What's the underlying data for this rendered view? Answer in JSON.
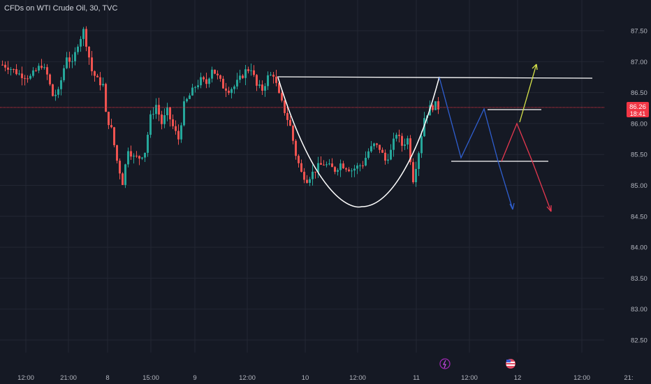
{
  "header": {
    "symbol_title": "CFDs on WTI Crude Oil, 30, TVC"
  },
  "price_axis": {
    "last_price": "86.26",
    "countdown": "18:41",
    "last_price_color": "#f23645",
    "labels": [
      "87.50",
      "87.00",
      "86.50",
      "86.00",
      "85.50",
      "85.00",
      "84.50",
      "84.00",
      "83.50",
      "83.00",
      "82.50"
    ]
  },
  "time_axis": {
    "labels": [
      "12:00",
      "21:00",
      "8",
      "15:00",
      "9",
      "12:00",
      "10",
      "12:00",
      "11",
      "12:00",
      "12",
      "12:00",
      "21:"
    ]
  },
  "event_icons": [
    {
      "name": "lightning-icon",
      "color": "#9c27b0"
    },
    {
      "name": "us-flag-icon",
      "color": "#e04b63"
    }
  ],
  "colors": {
    "background": "#151924",
    "grid": "#232733",
    "up": "#26a69a",
    "down": "#ef5350",
    "drawing_white": "#ffffff",
    "drawing_blue": "#2f5fd0",
    "drawing_red": "#e5384f",
    "drawing_yellow": "#d7e34a"
  },
  "chart_data": {
    "type": "candlestick",
    "title": "CFDs on WTI Crude Oil, 30, TVC",
    "ylim": [
      82.2,
      87.8
    ],
    "grid": true,
    "last_price": 86.26,
    "anchors": [
      [
        0,
        86.95
      ],
      [
        2,
        86.92
      ],
      [
        6,
        86.8
      ],
      [
        10,
        86.75
      ],
      [
        14,
        86.95
      ],
      [
        16,
        86.78
      ],
      [
        18,
        86.45
      ],
      [
        20,
        86.5
      ],
      [
        23,
        87.1
      ],
      [
        25,
        86.95
      ],
      [
        27,
        87.3
      ],
      [
        29,
        87.5
      ],
      [
        30,
        87.3
      ],
      [
        32,
        86.85
      ],
      [
        34,
        86.7
      ],
      [
        36,
        86.62
      ],
      [
        37,
        86.15
      ],
      [
        39,
        85.9
      ],
      [
        41,
        85.4
      ],
      [
        43,
        85.05
      ],
      [
        45,
        85.6
      ],
      [
        47,
        85.45
      ],
      [
        49,
        85.45
      ],
      [
        51,
        85.55
      ],
      [
        53,
        86.1
      ],
      [
        55,
        86.3
      ],
      [
        57,
        86.0
      ],
      [
        59,
        86.2
      ],
      [
        61,
        85.95
      ],
      [
        63,
        85.75
      ],
      [
        65,
        86.3
      ],
      [
        67,
        86.45
      ],
      [
        69,
        86.6
      ],
      [
        71,
        86.7
      ],
      [
        73,
        86.65
      ],
      [
        75,
        86.9
      ],
      [
        77,
        86.75
      ],
      [
        79,
        86.6
      ],
      [
        81,
        86.55
      ],
      [
        83,
        86.6
      ],
      [
        85,
        86.72
      ],
      [
        87,
        86.85
      ],
      [
        89,
        86.9
      ],
      [
        91,
        86.6
      ],
      [
        93,
        86.55
      ],
      [
        95,
        86.75
      ],
      [
        97,
        86.8
      ],
      [
        99,
        86.45
      ],
      [
        101,
        86.2
      ],
      [
        103,
        85.95
      ],
      [
        105,
        85.5
      ],
      [
        107,
        85.2
      ],
      [
        109,
        85.1
      ],
      [
        111,
        85.2
      ],
      [
        113,
        85.3
      ],
      [
        115,
        85.35
      ],
      [
        117,
        85.3
      ],
      [
        119,
        85.25
      ],
      [
        121,
        85.35
      ],
      [
        123,
        85.3
      ],
      [
        125,
        85.25
      ],
      [
        127,
        85.3
      ],
      [
        129,
        85.35
      ],
      [
        131,
        85.55
      ],
      [
        133,
        85.65
      ],
      [
        135,
        85.6
      ],
      [
        137,
        85.4
      ],
      [
        139,
        85.55
      ],
      [
        141,
        85.85
      ],
      [
        143,
        85.65
      ],
      [
        145,
        85.75
      ],
      [
        147,
        85.1
      ],
      [
        149,
        85.55
      ],
      [
        151,
        86.1
      ],
      [
        153,
        86.25
      ],
      [
        155,
        86.3
      ],
      [
        156,
        86.26
      ]
    ]
  }
}
